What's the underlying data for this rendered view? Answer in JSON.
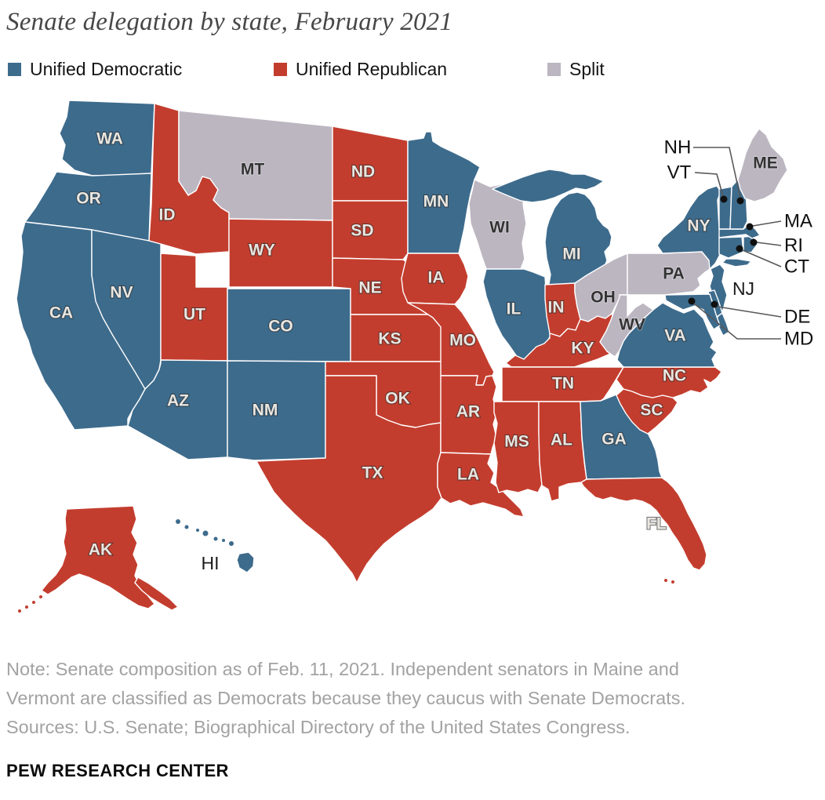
{
  "title": "Senate delegation by state, February 2021",
  "legend": [
    {
      "key": "dem",
      "label": "Unified Democratic",
      "color": "#3d6b8c"
    },
    {
      "key": "rep",
      "label": "Unified Republican",
      "color": "#c33d2e"
    },
    {
      "key": "split",
      "label": "Split",
      "color": "#bcb6c1"
    }
  ],
  "note_lines": [
    "Note: Senate composition as of Feb. 11, 2021. Independent senators in Maine and",
    "Vermont are classified as Democrats because they caucus with Senate Democrats.",
    "Sources: U.S. Senate; Biographical Directory of the United States Congress."
  ],
  "footer": "PEW RESEARCH CENTER",
  "chart_data": {
    "type": "choropleth-map",
    "title": "Senate delegation by state, February 2021",
    "region": "United States (50 states)",
    "legend_position": "top",
    "categories": {
      "dem": "Unified Democratic",
      "rep": "Unified Republican",
      "split": "Split"
    },
    "states": {
      "WA": "dem",
      "OR": "dem",
      "CA": "dem",
      "NV": "dem",
      "ID": "rep",
      "MT": "split",
      "WY": "rep",
      "UT": "rep",
      "CO": "dem",
      "AZ": "dem",
      "NM": "dem",
      "ND": "rep",
      "SD": "rep",
      "NE": "rep",
      "KS": "rep",
      "OK": "rep",
      "TX": "rep",
      "MN": "dem",
      "IA": "rep",
      "MO": "rep",
      "AR": "rep",
      "LA": "rep",
      "WI": "split",
      "IL": "dem",
      "MI": "dem",
      "IN": "rep",
      "OH": "split",
      "KY": "rep",
      "TN": "rep",
      "MS": "rep",
      "AL": "rep",
      "GA": "dem",
      "FL": "rep",
      "SC": "rep",
      "NC": "rep",
      "VA": "dem",
      "WV": "split",
      "PA": "split",
      "NY": "dem",
      "NJ": "dem",
      "DE": "dem",
      "MD": "dem",
      "CT": "dem",
      "RI": "dem",
      "MA": "dem",
      "VT": "dem",
      "NH": "dem",
      "ME": "split",
      "AK": "rep",
      "HI": "dem"
    },
    "callout_labeled_states": [
      "NH",
      "VT",
      "MA",
      "RI",
      "CT",
      "DE",
      "MD"
    ],
    "externally_labeled_states": [
      "NJ",
      "HI"
    ]
  }
}
